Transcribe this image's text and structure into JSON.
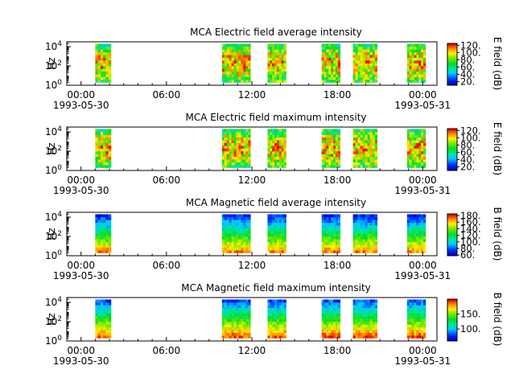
{
  "chart_data": [
    {
      "type": "heatmap",
      "title": "MCA  Electric field average intensity",
      "ylabel": "Hz",
      "colorbar_label": "E field (dB)",
      "colorbar_range": [
        10,
        125
      ],
      "colorbar_ticks": [
        "20.",
        "40.",
        "60.",
        "80.",
        "100.",
        "120."
      ],
      "colorbar_tick_values": [
        20,
        40,
        60,
        80,
        100,
        120
      ],
      "kind": "electric",
      "segments_hours": [
        [
          1.0,
          2.1
        ],
        [
          9.9,
          11.9
        ],
        [
          13.1,
          14.4
        ],
        [
          16.9,
          18.2
        ],
        [
          19.1,
          20.8
        ],
        [
          22.9,
          24.2
        ]
      ]
    },
    {
      "type": "heatmap",
      "title": "MCA  Electric field maximum intensity",
      "ylabel": "Hz",
      "colorbar_label": "E field (dB)",
      "colorbar_range": [
        10,
        125
      ],
      "colorbar_ticks": [
        "20.",
        "40.",
        "60.",
        "80.",
        "100.",
        "120."
      ],
      "colorbar_tick_values": [
        20,
        40,
        60,
        80,
        100,
        120
      ],
      "kind": "electric",
      "segments_hours": [
        [
          1.0,
          2.1
        ],
        [
          9.9,
          11.9
        ],
        [
          13.1,
          14.4
        ],
        [
          16.9,
          18.2
        ],
        [
          19.1,
          20.8
        ],
        [
          22.9,
          24.2
        ]
      ]
    },
    {
      "type": "heatmap",
      "title": "MCA  Magnetic field average intensity",
      "ylabel": "Hz",
      "colorbar_label": "B field (dB)",
      "colorbar_range": [
        58,
        185
      ],
      "colorbar_ticks": [
        "60.",
        "80.",
        "100.",
        "120.",
        "140.",
        "160.",
        "180."
      ],
      "colorbar_tick_values": [
        60,
        80,
        100,
        120,
        140,
        160,
        180
      ],
      "kind": "magnetic",
      "segments_hours": [
        [
          1.0,
          2.1
        ],
        [
          9.9,
          11.9
        ],
        [
          13.1,
          14.4
        ],
        [
          16.9,
          18.2
        ],
        [
          19.1,
          20.8
        ],
        [
          22.9,
          24.2
        ]
      ]
    },
    {
      "type": "heatmap",
      "title": "MCA  Magnetic field maximum intensity",
      "ylabel": "Hz",
      "colorbar_label": "B field (dB)",
      "colorbar_range": [
        60,
        200
      ],
      "colorbar_ticks": [
        "100.",
        "150."
      ],
      "colorbar_tick_values": [
        100,
        150
      ],
      "kind": "magnetic",
      "segments_hours": [
        [
          1.0,
          2.1
        ],
        [
          9.9,
          11.9
        ],
        [
          13.1,
          14.4
        ],
        [
          16.9,
          18.2
        ],
        [
          19.1,
          20.8
        ],
        [
          22.9,
          24.2
        ]
      ]
    }
  ],
  "x_axis": {
    "range_hours": [
      -1,
      25
    ],
    "ticks": [
      {
        "hour": 0,
        "label": "00:00",
        "date": "1993-05-30"
      },
      {
        "hour": 6,
        "label": "06:00",
        "date": ""
      },
      {
        "hour": 12,
        "label": "12:00",
        "date": ""
      },
      {
        "hour": 18,
        "label": "18:00",
        "date": ""
      },
      {
        "hour": 24,
        "label": "00:00",
        "date": "1993-05-31"
      }
    ]
  },
  "y_axis": {
    "log_range": [
      0,
      4.5
    ],
    "ticks": [
      {
        "exp": 0,
        "base": "10",
        "sup": "0"
      },
      {
        "exp": 2,
        "base": "10",
        "sup": "2"
      },
      {
        "exp": 4,
        "base": "10",
        "sup": "4"
      }
    ]
  }
}
